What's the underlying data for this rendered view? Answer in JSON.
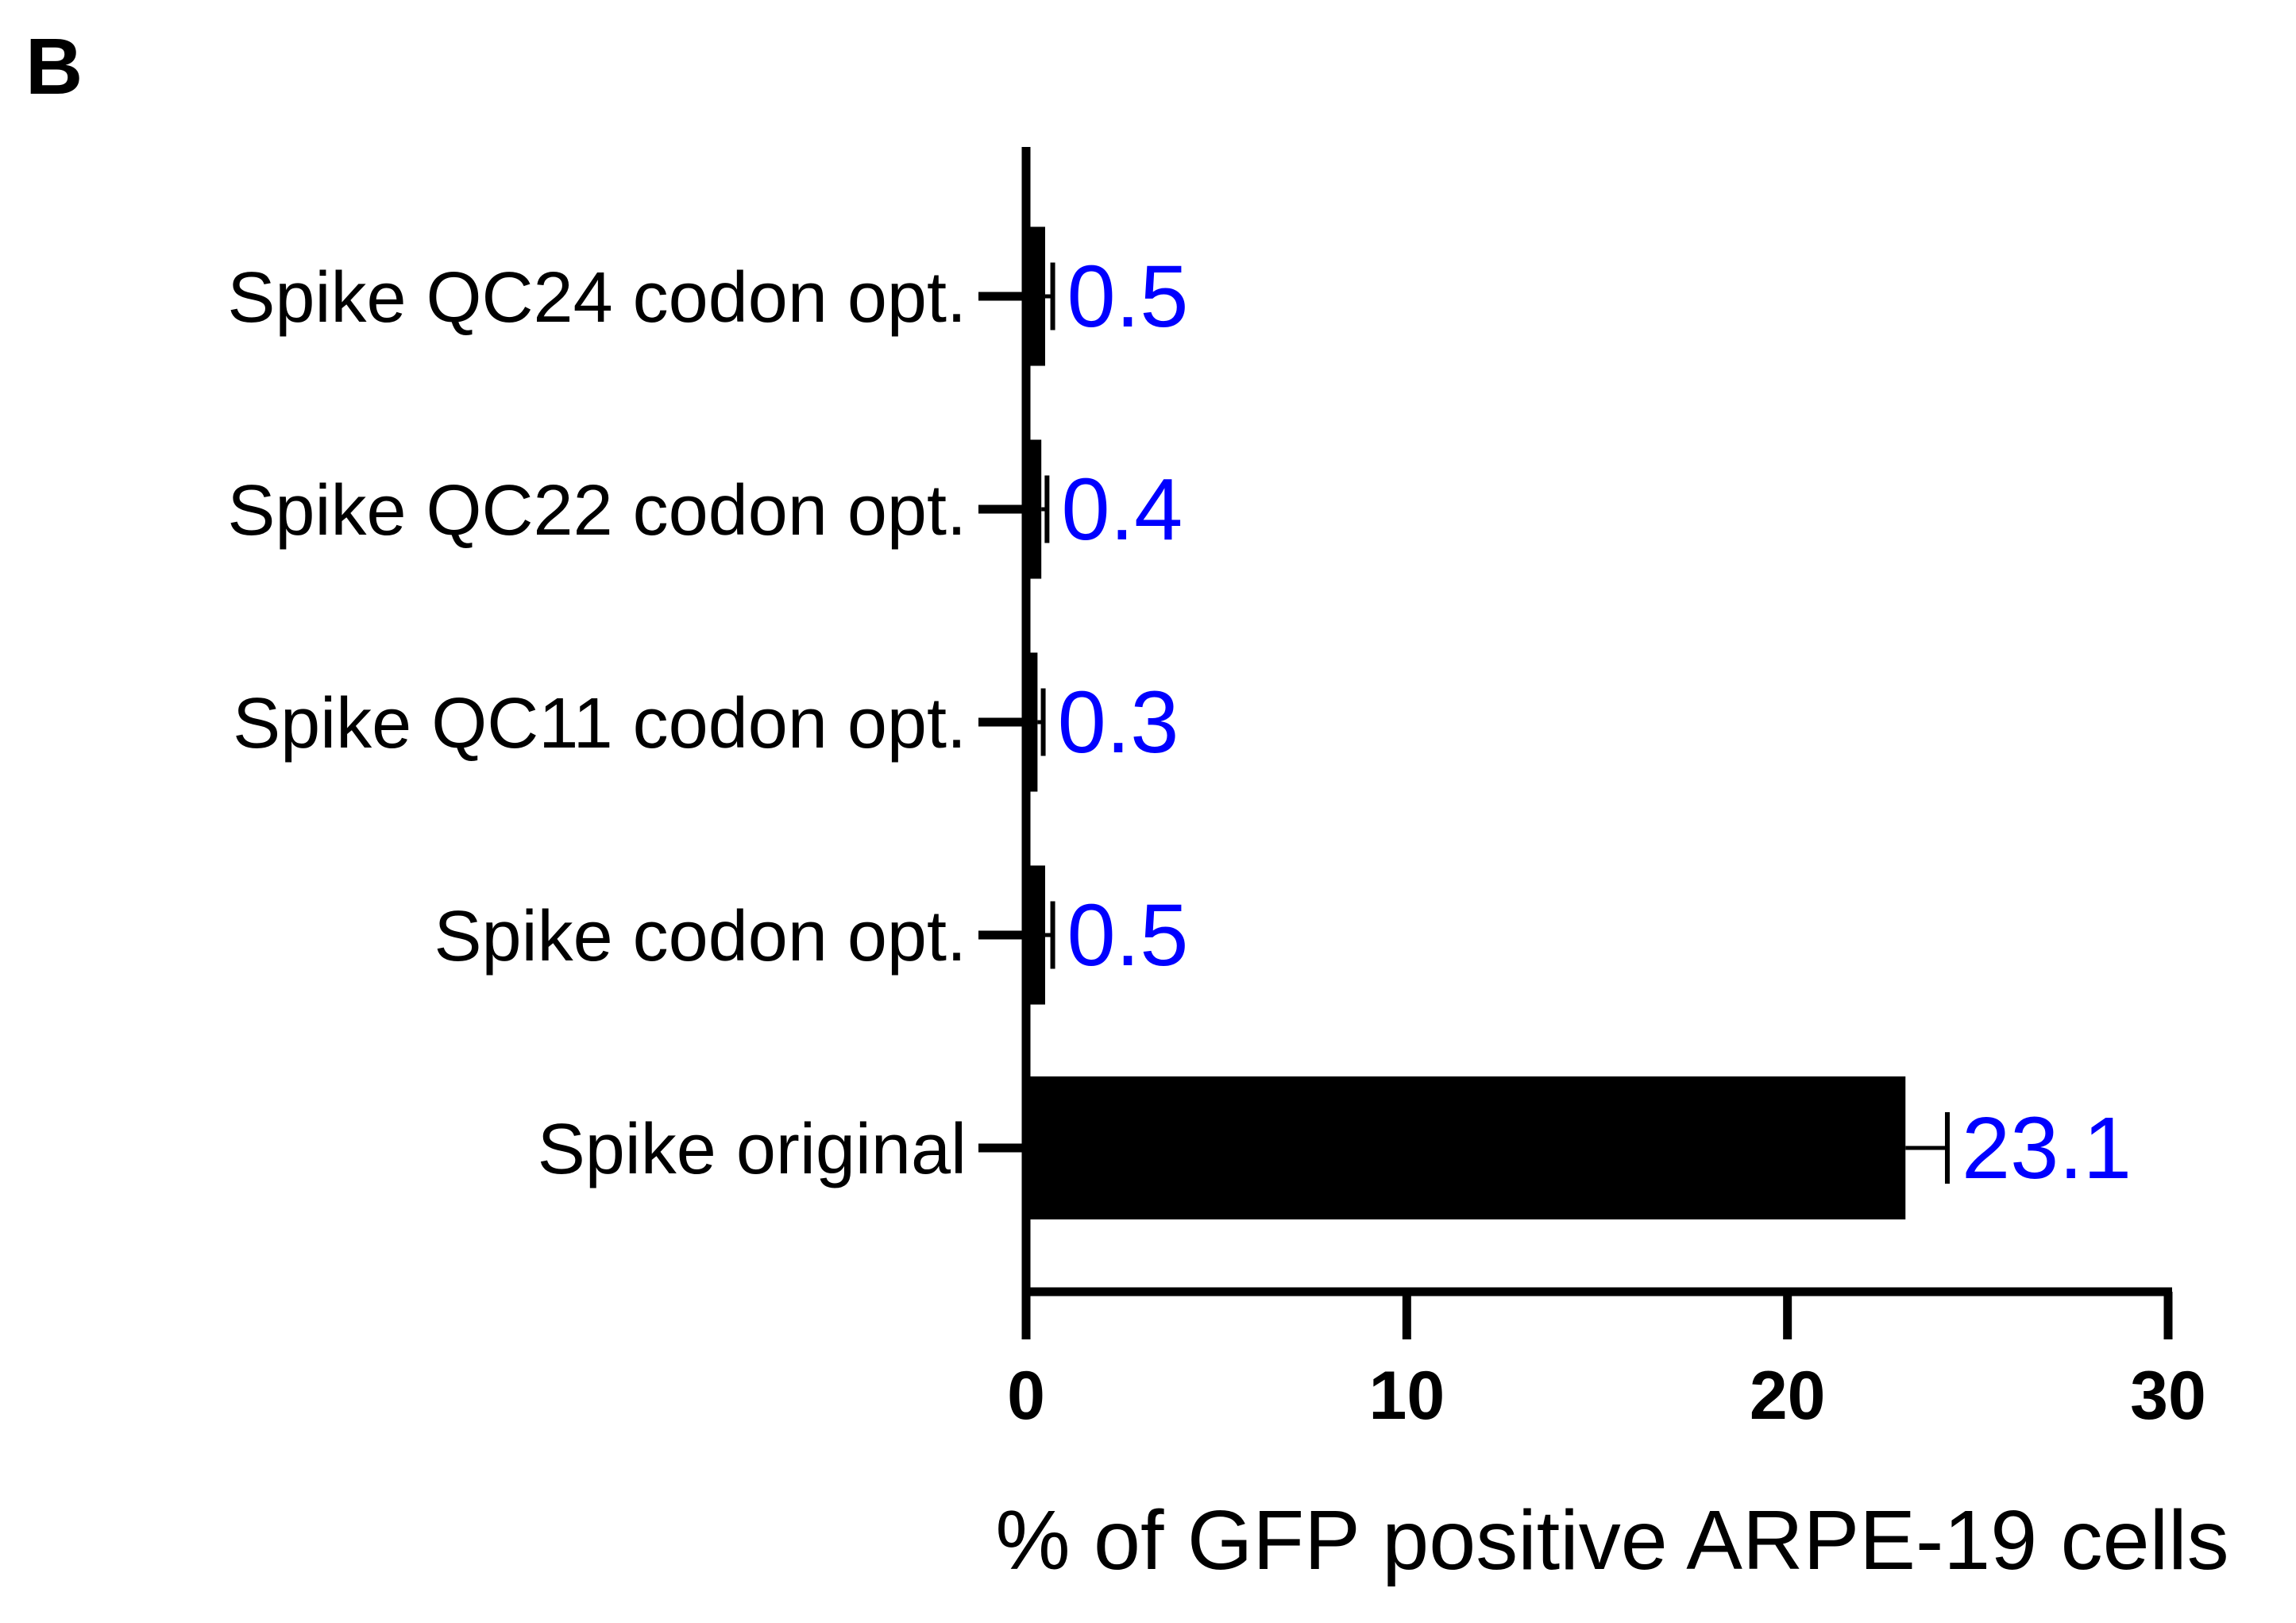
{
  "panel_label": "B",
  "chart_data": {
    "type": "bar",
    "orientation": "horizontal",
    "categories": [
      "Spike QC24 codon opt.",
      "Spike QC22 codon opt.",
      "Spike QC11 codon opt.",
      "Spike codon opt.",
      "Spike original"
    ],
    "values": [
      0.5,
      0.4,
      0.3,
      0.5,
      23.1
    ],
    "error": [
      0.2,
      0.15,
      0.15,
      0.2,
      1.1
    ],
    "data_labels": [
      "0.5",
      "0.4",
      "0.3",
      "0.5",
      "23.1"
    ],
    "xlabel": "% of GFP positive ARPE-19 cells",
    "ylabel": "",
    "xlim": [
      0,
      30
    ],
    "xticks": [
      0,
      10,
      20,
      30
    ],
    "xtick_labels": [
      "0",
      "10",
      "20",
      "30"
    ],
    "grid": false,
    "colors": {
      "bar": "#000000",
      "data_label": "#0000ff",
      "axis": "#000000"
    }
  }
}
